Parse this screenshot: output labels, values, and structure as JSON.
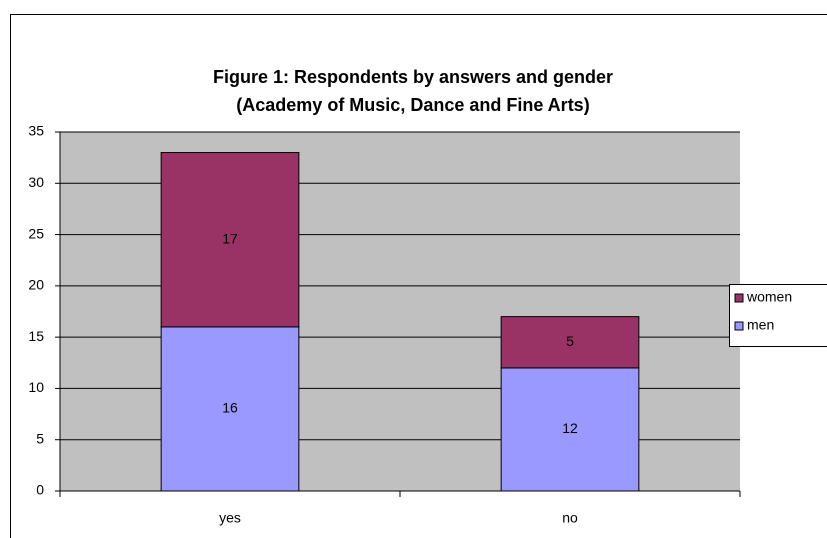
{
  "chart_data": {
    "type": "stacked_bar",
    "title": "Figure 1: Respondents by answers and gender",
    "subtitle": "(Academy of Music, Dance and Fine Arts)",
    "categories": [
      "yes",
      "no"
    ],
    "series": [
      {
        "name": "men",
        "color": "#9999ff",
        "values": [
          16,
          12
        ]
      },
      {
        "name": "women",
        "color": "#993366",
        "values": [
          17,
          5
        ]
      }
    ],
    "ylim": [
      0,
      35
    ],
    "yticks": [
      0,
      5,
      10,
      15,
      20,
      25,
      30,
      35
    ],
    "grid": true,
    "legend": "right"
  }
}
